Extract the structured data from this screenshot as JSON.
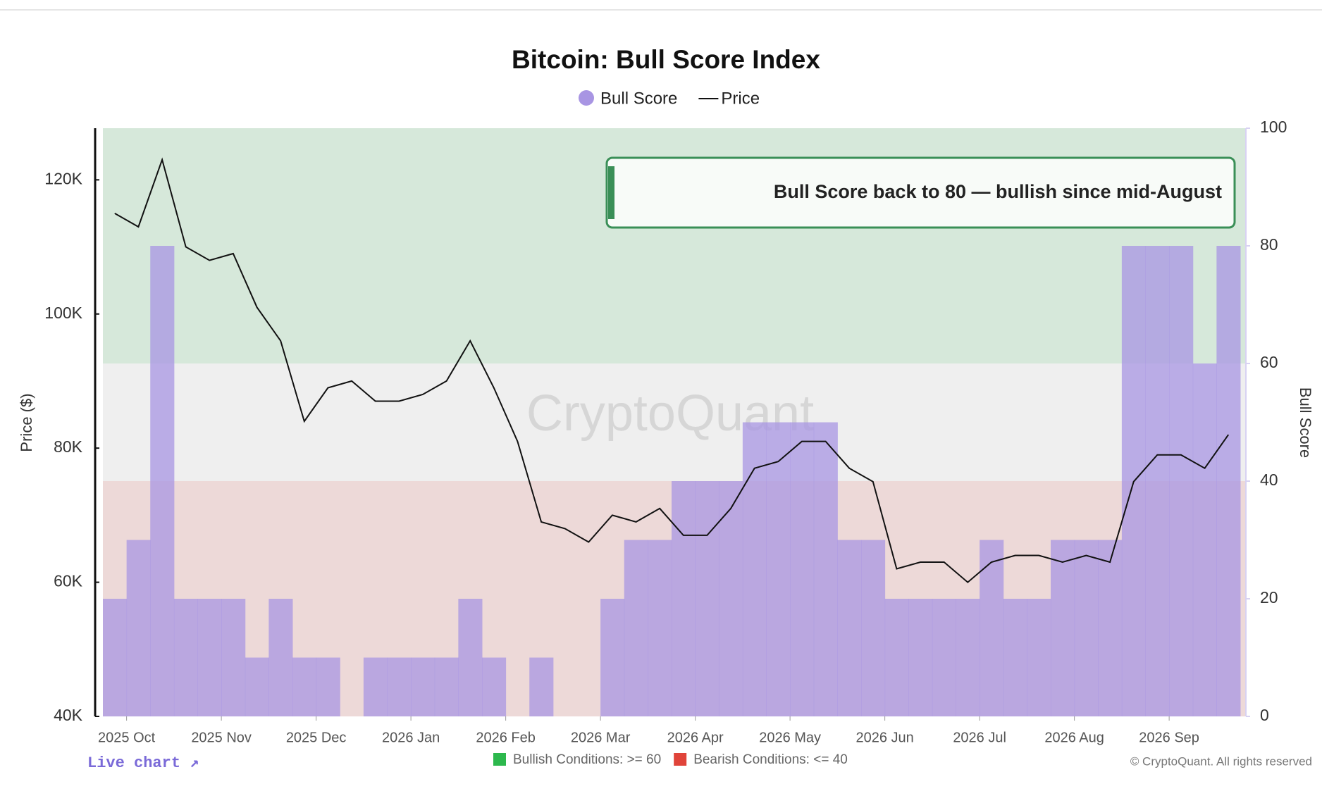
{
  "chart_data": {
    "type": "bar-line",
    "title": "Bitcoin: Bull Score Index",
    "categories": [
      null,
      "2025 Oct",
      null,
      null,
      null,
      "2025 Nov",
      null,
      null,
      null,
      "2025 Dec",
      null,
      null,
      null,
      "2026 Jan",
      null,
      null,
      null,
      "2026 Feb",
      null,
      null,
      null,
      "2026 Mar",
      null,
      null,
      null,
      "2026 Apr",
      null,
      null,
      null,
      "2026 May",
      null,
      null,
      null,
      "2026 Jun",
      null,
      null,
      null,
      "2026 Jul",
      null,
      null,
      null,
      "2026 Aug",
      null,
      null,
      null,
      "2026 Sep",
      null,
      null
    ],
    "series": [
      {
        "name": "Bull Score",
        "color": "#a895e3",
        "axis": "y2",
        "values": [
          20,
          30,
          80,
          20,
          20,
          20,
          10,
          20,
          10,
          10,
          0,
          10,
          10,
          10,
          10,
          20,
          10,
          0,
          10,
          0,
          0,
          20,
          30,
          30,
          40,
          40,
          40,
          50,
          50,
          50,
          50,
          30,
          30,
          20,
          20,
          20,
          20,
          30,
          20,
          20,
          30,
          30,
          30,
          80,
          80,
          80,
          60,
          80
        ]
      },
      {
        "name": "Price",
        "color": "#111111",
        "axis": "y",
        "values": [
          115000,
          113000,
          123000,
          110000,
          108000,
          109000,
          101000,
          96000,
          84000,
          89000,
          90000,
          87000,
          87000,
          88000,
          90000,
          96000,
          89000,
          81000,
          69000,
          68000,
          66000,
          70000,
          69000,
          71000,
          67000,
          67000,
          71000,
          77000,
          78000,
          81000,
          81000,
          77000,
          75000,
          62000,
          63000,
          63000,
          60000,
          63000,
          64000,
          64000,
          63000,
          64000,
          63000,
          75000,
          79000,
          79000,
          77000,
          82000
        ]
      }
    ],
    "ylabel": "Price ($)",
    "y2label": "Bull Score",
    "ylim": [
      40000,
      127700
    ],
    "yticks": [
      {
        "value": 40000,
        "label": "40K"
      },
      {
        "value": 60000,
        "label": "60K"
      },
      {
        "value": 80000,
        "label": "80K"
      },
      {
        "value": 100000,
        "label": "100K"
      },
      {
        "value": 120000,
        "label": "120K"
      }
    ],
    "y2lim": [
      0,
      100
    ],
    "y2ticks": [
      0,
      20,
      40,
      60,
      80,
      100
    ],
    "bands": [
      {
        "label": "Bullish Conditions: >= 60",
        "from": 60,
        "to": 100,
        "color": "#2db84d"
      },
      {
        "label": "Bearish Conditions: <= 40",
        "from": 0,
        "to": 40,
        "color": "#e0443a"
      }
    ],
    "annotation": {
      "text": "Bull Score back to 80 — bullish since mid-August",
      "color": "#3a8f57"
    },
    "watermark": "CryptoQuant",
    "link": "Live chart ↗",
    "copyright": "© CryptoQuant. All rights reserved",
    "legend": "top"
  }
}
